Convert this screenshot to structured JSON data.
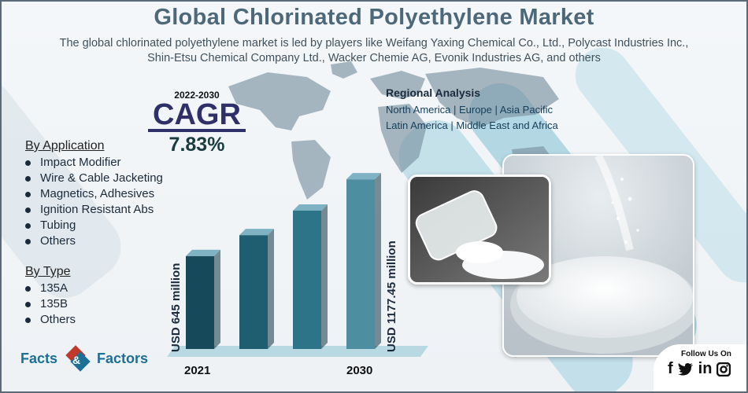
{
  "title": "Global  Chlorinated Polyethylene Market",
  "subtitle_line1": "The global chlorinated polyethylene market is led by players like Weifang Yaxing Chemical Co., Ltd., Polycast Industries Inc.,",
  "subtitle_line2": "Shin-Etsu Chemical Company Ltd., Wacker Chemie AG, Evonik Industries AG, and others",
  "cagr": {
    "years": "2022-2030",
    "label": "CAGR",
    "value": "7.83%"
  },
  "regional": {
    "title": "Regional Analysis",
    "line1": "North America | Europe | Asia Pacific",
    "line2": "Latin America | Middle East and Africa"
  },
  "by_application": {
    "title": "By Application",
    "items": [
      "Impact Modifier",
      "Wire & Cable Jacketing",
      "Magnetics, Adhesives",
      "Ignition Resistant Abs",
      "Tubing",
      "Others"
    ]
  },
  "by_type": {
    "title": "By Type",
    "items": [
      "135A",
      "135B",
      "Others"
    ]
  },
  "chart_data": {
    "type": "bar",
    "categories": [
      "2021",
      "",
      "",
      "2030"
    ],
    "values": [
      645,
      790,
      960,
      1177.45
    ],
    "labels": [
      "USD 645 million",
      "USD 1177.45 million"
    ],
    "colors": [
      "#16495a",
      "#1f5d70",
      "#2e7488",
      "#4d8ea1"
    ]
  },
  "logo": {
    "left": "Facts",
    "right": "Factors"
  },
  "follow": {
    "label": "Follow Us On",
    "icons": [
      "facebook-icon",
      "twitter-icon",
      "linkedin-icon",
      "instagram-icon"
    ]
  },
  "colors": {
    "title": "#4d6879",
    "cagr": "#2f2f6a",
    "brand": "#1c6f95",
    "accent_red": "#c0392b"
  }
}
